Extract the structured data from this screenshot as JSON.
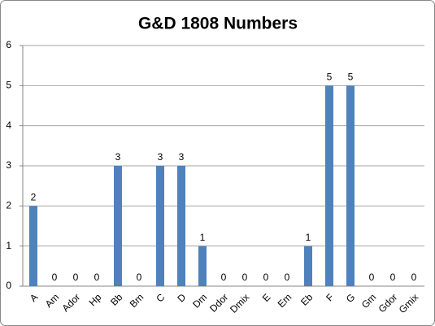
{
  "chart_data": {
    "type": "bar",
    "title": "G&D 1808 Numbers",
    "categories": [
      "A",
      "Am",
      "Ador",
      "Hp",
      "Bb",
      "Bm",
      "C",
      "D",
      "Dm",
      "Ddor",
      "Dmix",
      "E",
      "Em",
      "Eb",
      "F",
      "G",
      "Gm",
      "Gdor",
      "Gmix"
    ],
    "values": [
      2,
      0,
      0,
      0,
      3,
      0,
      3,
      3,
      1,
      0,
      0,
      0,
      0,
      1,
      5,
      5,
      0,
      0,
      0
    ],
    "color": "#4f81bd",
    "ylim": [
      0,
      6
    ],
    "yticks": [
      0,
      1,
      2,
      3,
      4,
      5,
      6
    ],
    "grid": true
  }
}
